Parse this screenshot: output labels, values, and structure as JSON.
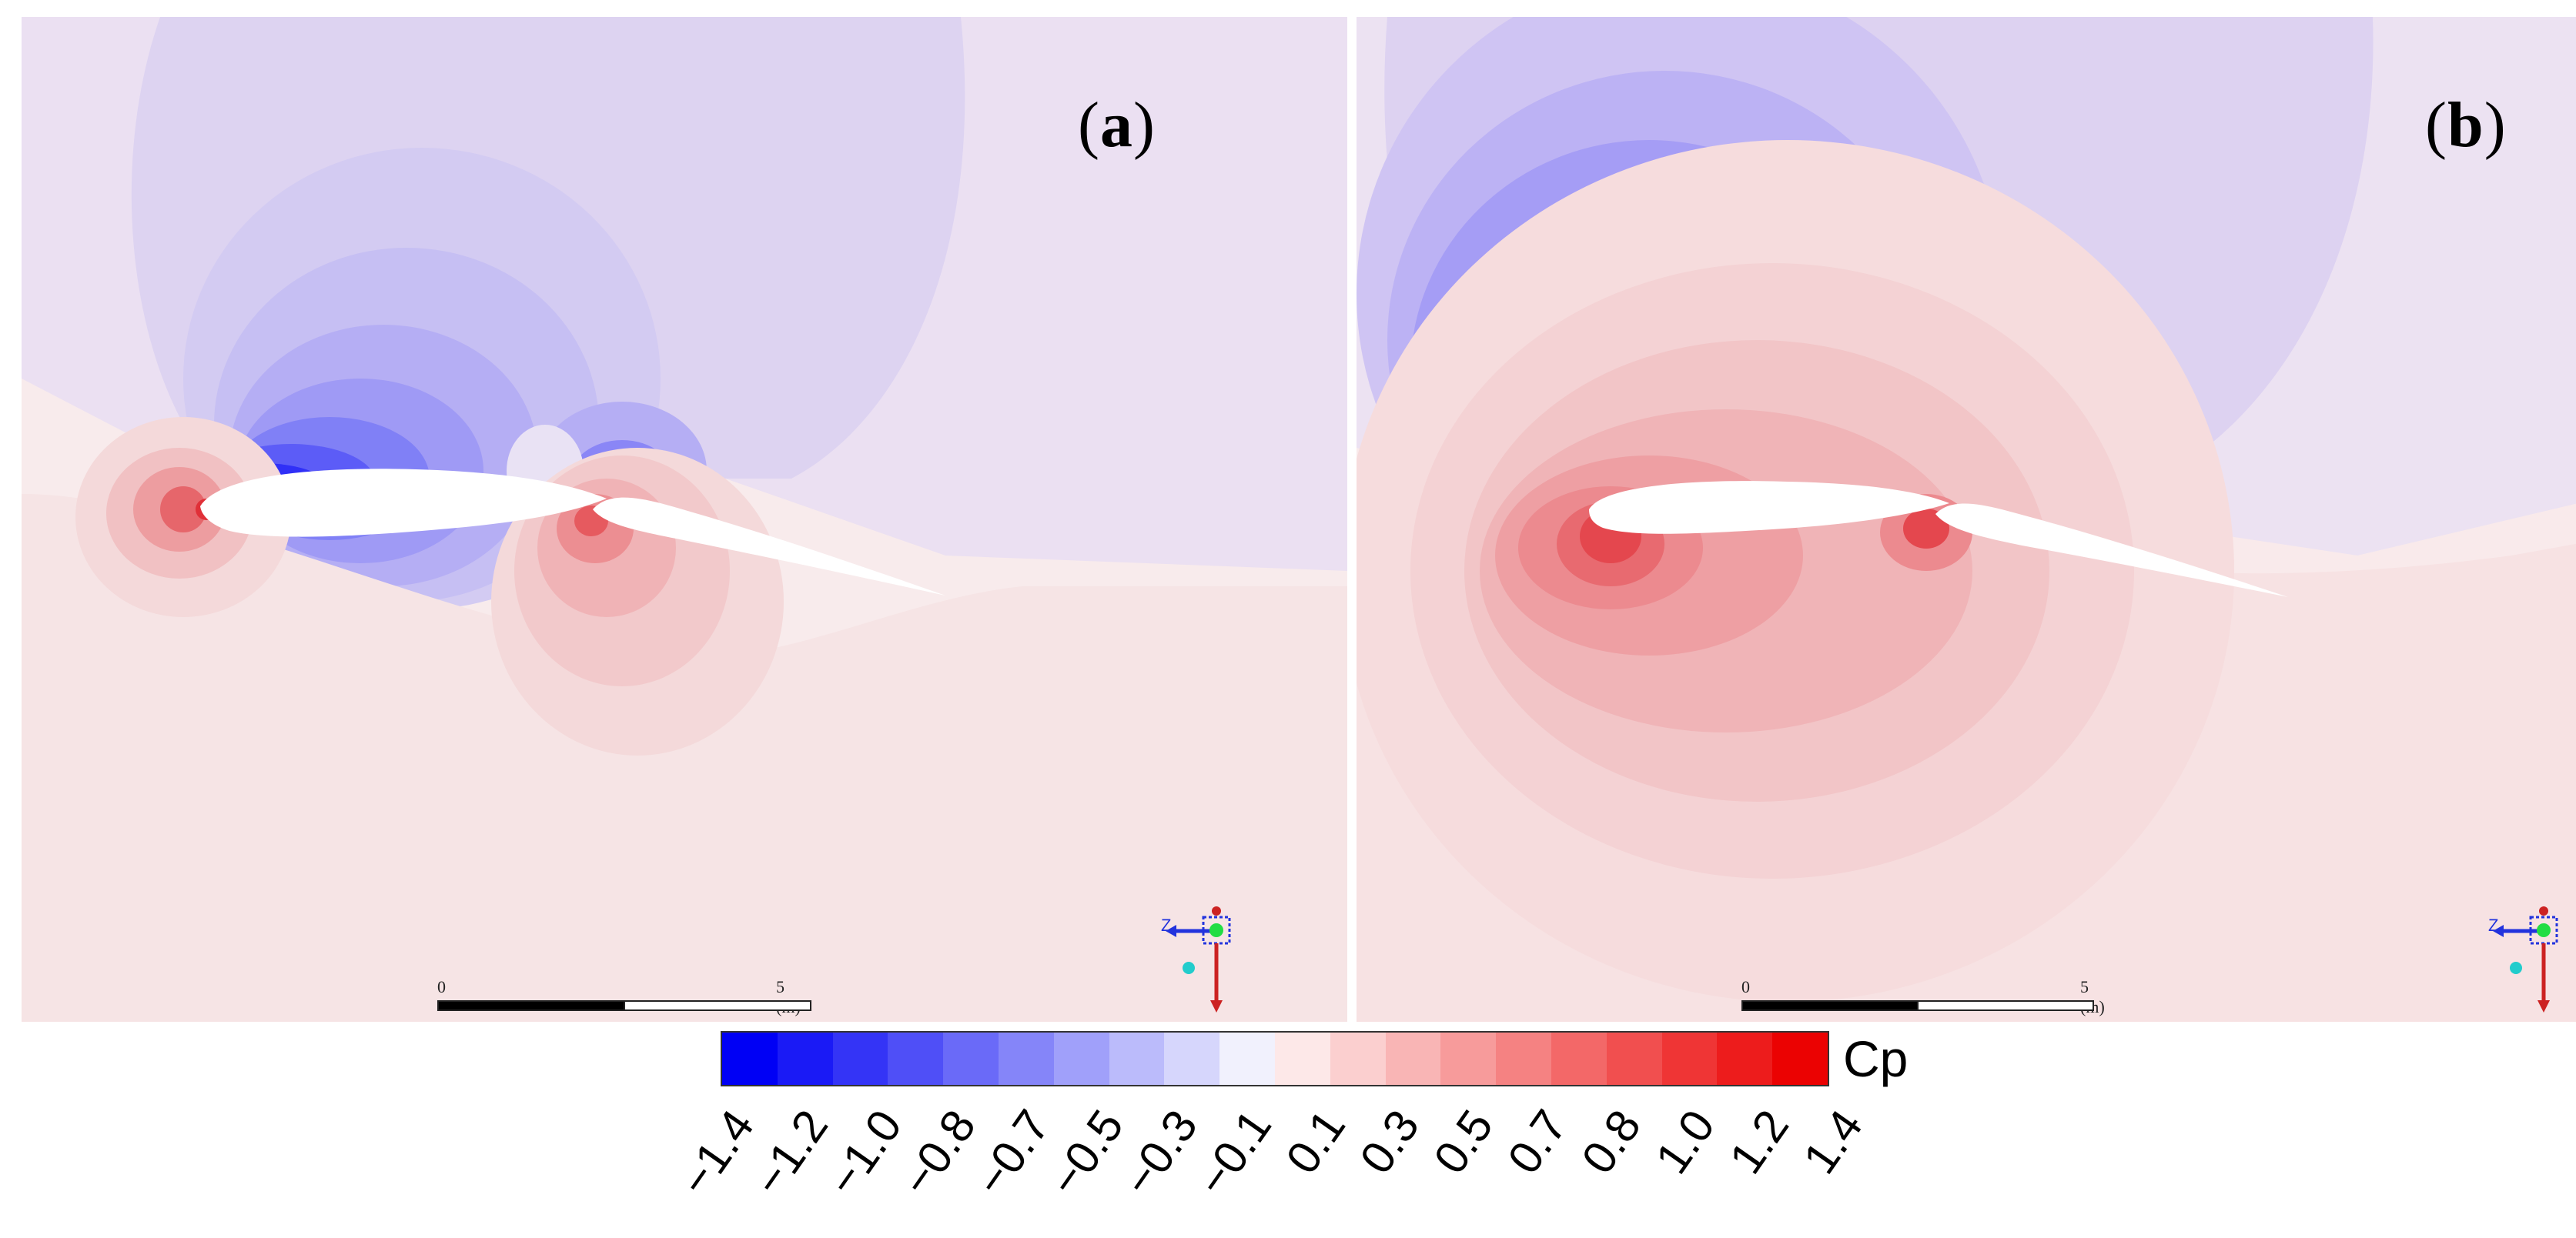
{
  "panels": [
    {
      "id": "a",
      "label_open": "(",
      "label_letter": "a",
      "label_close": ")"
    },
    {
      "id": "b",
      "label_open": "(",
      "label_letter": "b",
      "label_close": ")"
    }
  ],
  "scale_bar": {
    "start_label": "0",
    "end_label": "5 (m)"
  },
  "colorbar": {
    "title": "Cp",
    "tick_labels": [
      "−1.4",
      "−1.2",
      "−1.0",
      "−0.8",
      "−0.7",
      "−0.5",
      "−0.3",
      "−0.1",
      "0.1",
      "0.3",
      "0.5",
      "0.7",
      "0.8",
      "1.0",
      "1.2",
      "1.4"
    ],
    "colors": [
      "#0000f5",
      "#1a1af6",
      "#3434f6",
      "#4f4ff7",
      "#6a6af8",
      "#8585f9",
      "#a0a0fa",
      "#bbbbfb",
      "#d6d6fc",
      "#f1f1fd",
      "#fde8e8",
      "#fbcfcf",
      "#f9b5b5",
      "#f79b9b",
      "#f58282",
      "#f36868",
      "#f14f4f",
      "#ef3535",
      "#ed1c1c",
      "#eb0202"
    ]
  },
  "axis_triad": {
    "axis_label": "Z"
  },
  "colors": {
    "strong_suction": "#0000f5",
    "strong_pressure": "#eb0202",
    "far_field": "#f3eaf2"
  }
}
